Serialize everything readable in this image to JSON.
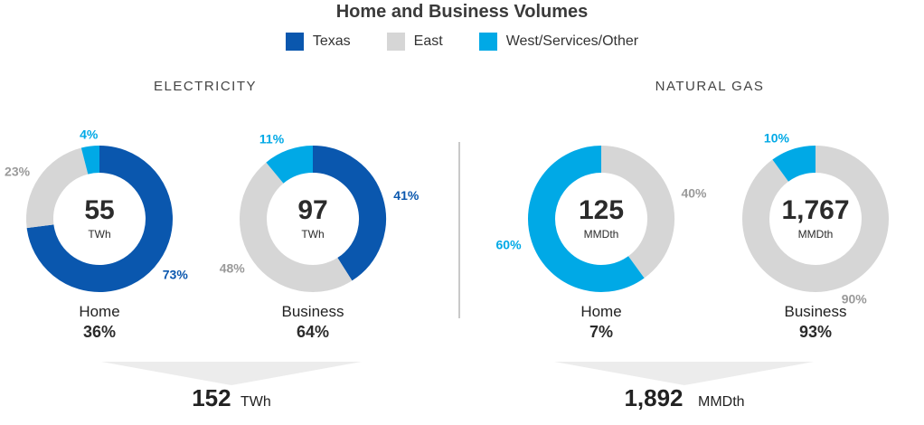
{
  "title": "Home and Business Volumes",
  "colors": {
    "texas": "#0a57ae",
    "east": "#d6d6d6",
    "west": "#00a9e6",
    "pct_gray": "#9a9a9a"
  },
  "legend": [
    {
      "label": "Texas",
      "color": "#0a57ae"
    },
    {
      "label": "East",
      "color": "#d6d6d6"
    },
    {
      "label": "West/Services/Other",
      "color": "#00a9e6"
    }
  ],
  "sections": {
    "electricity": "ELECTRICITY",
    "natural_gas": "NATURAL GAS"
  },
  "chart_data": [
    {
      "type": "pie",
      "section": "ELECTRICITY",
      "name": "Home",
      "share": "36%",
      "center_value": "55",
      "unit": "TWh",
      "slices": [
        {
          "label": "Texas",
          "value": 73,
          "text": "73%"
        },
        {
          "label": "East",
          "value": 23,
          "text": "23%"
        },
        {
          "label": "West/Services/Other",
          "value": 4,
          "text": "4%"
        }
      ]
    },
    {
      "type": "pie",
      "section": "ELECTRICITY",
      "name": "Business",
      "share": "64%",
      "center_value": "97",
      "unit": "TWh",
      "slices": [
        {
          "label": "Texas",
          "value": 41,
          "text": "41%"
        },
        {
          "label": "East",
          "value": 48,
          "text": "48%"
        },
        {
          "label": "West/Services/Other",
          "value": 11,
          "text": "11%"
        }
      ]
    },
    {
      "type": "pie",
      "section": "NATURAL GAS",
      "name": "Home",
      "share": "7%",
      "center_value": "125",
      "unit": "MMDth",
      "slices": [
        {
          "label": "East",
          "value": 40,
          "text": "40%"
        },
        {
          "label": "West/Services/Other",
          "value": 60,
          "text": "60%"
        }
      ]
    },
    {
      "type": "pie",
      "section": "NATURAL GAS",
      "name": "Business",
      "share": "93%",
      "center_value": "1,767",
      "unit": "MMDth",
      "slices": [
        {
          "label": "East",
          "value": 90,
          "text": "90%"
        },
        {
          "label": "West/Services/Other",
          "value": 10,
          "text": "10%"
        }
      ]
    }
  ],
  "totals": {
    "electricity": {
      "value": "152",
      "unit": "TWh"
    },
    "natural_gas": {
      "value": "1,892",
      "unit": "MMDth"
    }
  }
}
